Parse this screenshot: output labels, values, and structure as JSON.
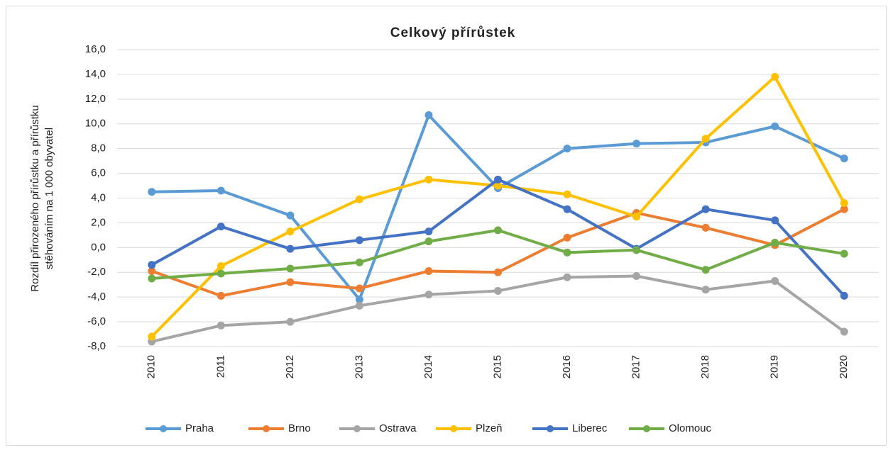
{
  "chart_data": {
    "type": "line",
    "title": "Celkový přírůstek",
    "y_label": [
      "Rozdíl přirozeného přírůstku a přírůstku",
      "stěhováním na 1 000 obyvatel"
    ],
    "categories": [
      "2010",
      "2011",
      "2012",
      "2013",
      "2014",
      "2015",
      "2016",
      "2017",
      "2018",
      "2019",
      "2020"
    ],
    "ylim": [
      -8,
      16
    ],
    "yticks": [
      {
        "value": -8,
        "label": "-8,0"
      },
      {
        "value": -6,
        "label": "-6,0"
      },
      {
        "value": -4,
        "label": "-4,0"
      },
      {
        "value": -2,
        "label": "-2,0"
      },
      {
        "value": 0,
        "label": "0,0"
      },
      {
        "value": 2,
        "label": "2,0"
      },
      {
        "value": 4,
        "label": "4,0"
      },
      {
        "value": 6,
        "label": "6,0"
      },
      {
        "value": 8,
        "label": "8,0"
      },
      {
        "value": 10,
        "label": "10,0"
      },
      {
        "value": 12,
        "label": "12,0"
      },
      {
        "value": 14,
        "label": "14,0"
      },
      {
        "value": 16,
        "label": "16,0"
      }
    ],
    "grid": true,
    "legend": "bottom",
    "series": [
      {
        "name": "Praha",
        "color": "#5b9bd5",
        "values": [
          4.5,
          4.6,
          2.6,
          -4.2,
          10.7,
          4.8,
          8.0,
          8.4,
          8.5,
          9.8,
          7.2
        ]
      },
      {
        "name": "Brno",
        "color": "#ed7d31",
        "values": [
          -1.9,
          -3.9,
          -2.8,
          -3.3,
          -1.9,
          -2.0,
          0.8,
          2.8,
          1.6,
          0.2,
          3.1
        ]
      },
      {
        "name": "Ostrava",
        "color": "#a5a5a5",
        "values": [
          -7.6,
          -6.3,
          -6.0,
          -4.7,
          -3.8,
          -3.5,
          -2.4,
          -2.3,
          -3.4,
          -2.7,
          -6.8
        ]
      },
      {
        "name": "Plzeň",
        "color": "#ffc000",
        "values": [
          -7.2,
          -1.5,
          1.3,
          3.9,
          5.5,
          5.0,
          4.3,
          2.5,
          8.8,
          13.8,
          3.6
        ]
      },
      {
        "name": "Liberec",
        "color": "#4472c4",
        "values": [
          -1.4,
          1.7,
          -0.1,
          0.6,
          1.3,
          5.5,
          3.1,
          -0.1,
          3.1,
          2.2,
          -3.9
        ]
      },
      {
        "name": "Olomouc",
        "color": "#70ad47",
        "values": [
          -2.5,
          -2.1,
          -1.7,
          -1.2,
          0.5,
          1.4,
          -0.4,
          -0.2,
          -1.8,
          0.4,
          -0.5
        ]
      }
    ]
  }
}
